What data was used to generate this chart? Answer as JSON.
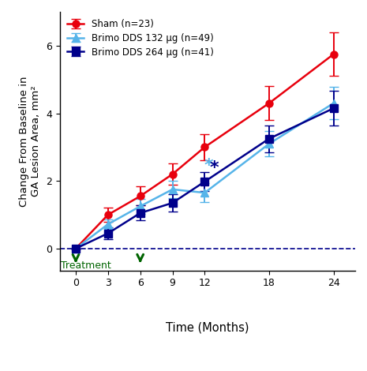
{
  "ylabel": "Change From Baseline in\nGA Lesion Area, mm²",
  "xlabel": "Time (Months)",
  "treatment_label": "Treatment",
  "xlim": [
    -1.5,
    26
  ],
  "ylim": [
    -0.65,
    7.0
  ],
  "yticks": [
    0,
    2,
    4,
    6
  ],
  "xticks": [
    0,
    3,
    6,
    9,
    12,
    18,
    24
  ],
  "dashed_y": 0,
  "sham": {
    "label": "Sham (n=23)",
    "color": "#e8000d",
    "marker": "o",
    "x": [
      0,
      3,
      6,
      9,
      12,
      18,
      24
    ],
    "y": [
      0.0,
      1.0,
      1.55,
      2.2,
      3.0,
      4.3,
      5.75
    ],
    "yerr": [
      0.0,
      0.22,
      0.28,
      0.32,
      0.38,
      0.5,
      0.65
    ]
  },
  "brimo132": {
    "label": "Brimo DDS 132 μg (n=49)",
    "color": "#56b4e9",
    "marker": "^",
    "x": [
      0,
      3,
      6,
      9,
      12,
      18,
      24
    ],
    "y": [
      0.0,
      0.72,
      1.25,
      1.75,
      1.65,
      3.1,
      4.3
    ],
    "yerr": [
      0.0,
      0.15,
      0.22,
      0.25,
      0.28,
      0.38,
      0.48
    ]
  },
  "brimo264": {
    "label": "Brimo DDS 264 μg (n=41)",
    "color": "#00008b",
    "marker": "s",
    "x": [
      0,
      3,
      6,
      9,
      12,
      18,
      24
    ],
    "y": [
      0.0,
      0.45,
      1.05,
      1.35,
      1.98,
      3.25,
      4.15
    ],
    "yerr": [
      0.0,
      0.18,
      0.22,
      0.25,
      0.28,
      0.4,
      0.52
    ]
  },
  "star_light_x": 12.35,
  "star_light_y": 2.45,
  "star_dark_x": 12.9,
  "star_dark_y": 2.38,
  "background_color": "#ffffff",
  "arrow_color": "#006400"
}
